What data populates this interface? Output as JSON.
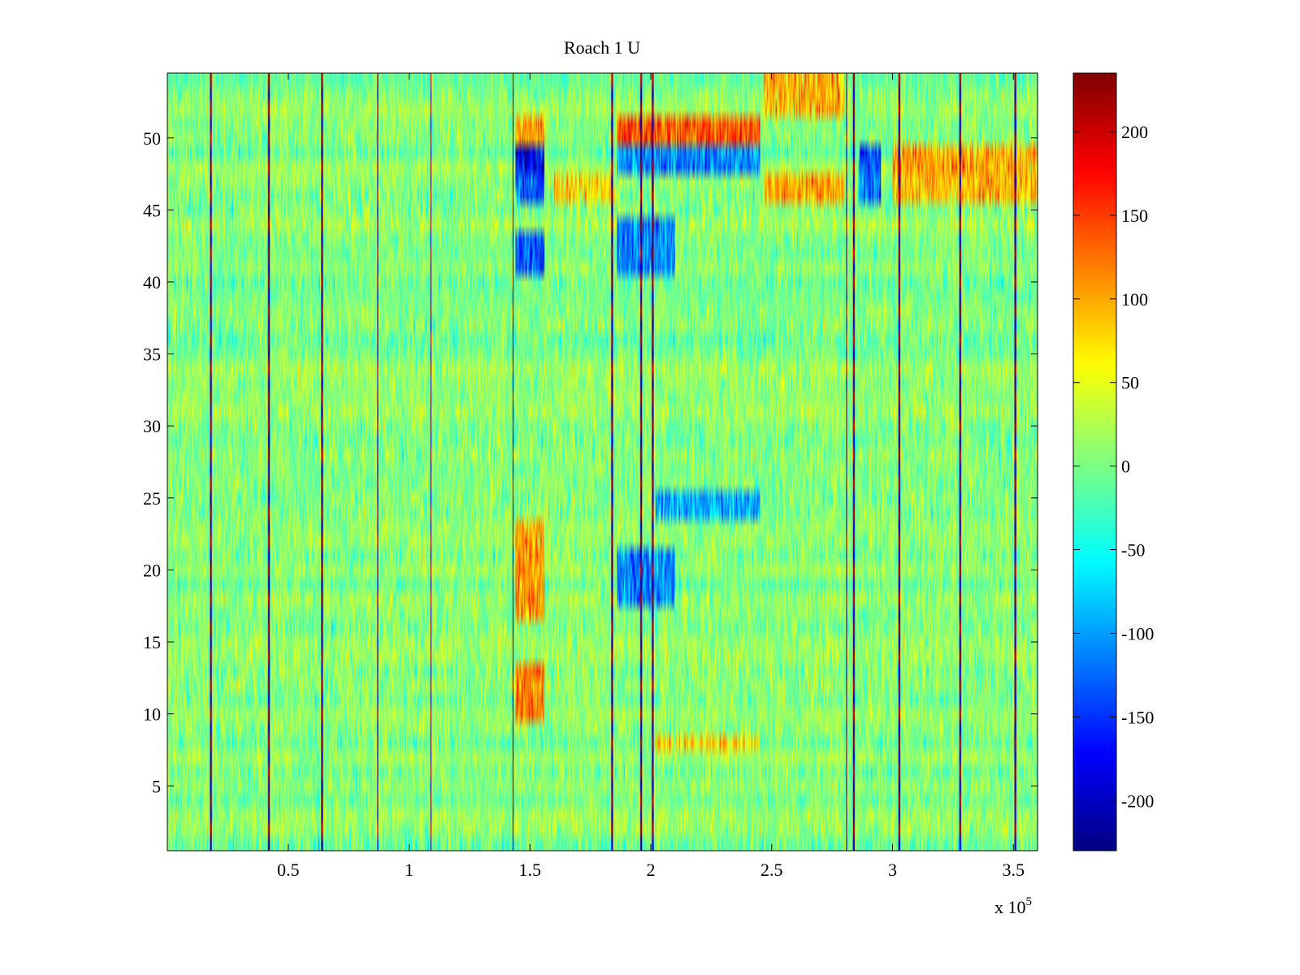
{
  "chart_data": {
    "type": "heatmap",
    "title": "Roach 1 U",
    "x": {
      "range": [
        0,
        3.6
      ],
      "ticks": [
        0.5,
        1,
        1.5,
        2,
        2.5,
        3,
        3.5
      ],
      "tick_labels": [
        "0.5",
        "1",
        "1.5",
        "2",
        "2.5",
        "3",
        "3.5"
      ],
      "multiplier_label": "x 10",
      "multiplier_exponent": "5"
    },
    "y": {
      "range": [
        0.5,
        54.5
      ],
      "ticks": [
        5,
        10,
        15,
        20,
        25,
        30,
        35,
        40,
        45,
        50
      ],
      "tick_labels": [
        "5",
        "10",
        "15",
        "20",
        "25",
        "30",
        "35",
        "40",
        "45",
        "50"
      ],
      "rows": 54
    },
    "colorbar": {
      "range": [
        -230,
        235
      ],
      "ticks": [
        -200,
        -150,
        -100,
        -50,
        0,
        50,
        100,
        150,
        200
      ],
      "tick_labels": [
        "-200",
        "-150",
        "-100",
        "-50",
        "0",
        "50",
        "100",
        "150",
        "200"
      ],
      "colormap": "jet"
    },
    "vertical_stripes_x": [
      0.18,
      0.42,
      0.64,
      0.87,
      1.09,
      1.43,
      1.84,
      1.96,
      2.01,
      2.81,
      2.84,
      3.03,
      3.28,
      3.51
    ],
    "features": [
      {
        "x": [
          1.44,
          1.56
        ],
        "y": [
          48,
          50
        ],
        "value": -180
      },
      {
        "x": [
          1.44,
          1.56
        ],
        "y": [
          50,
          51
        ],
        "value": 110
      },
      {
        "x": [
          1.44,
          1.56
        ],
        "y": [
          45.5,
          47
        ],
        "value": -130
      },
      {
        "x": [
          1.44,
          1.56
        ],
        "y": [
          41,
          43
        ],
        "value": -130
      },
      {
        "x": [
          1.44,
          1.56
        ],
        "y": [
          17,
          23
        ],
        "value": 110
      },
      {
        "x": [
          1.44,
          1.56
        ],
        "y": [
          10,
          13
        ],
        "value": 120
      },
      {
        "x": [
          1.86,
          2.45
        ],
        "y": [
          48,
          49.5
        ],
        "value": -110
      },
      {
        "x": [
          1.86,
          2.45
        ],
        "y": [
          49.5,
          51
        ],
        "value": 140
      },
      {
        "x": [
          1.6,
          1.85
        ],
        "y": [
          45.5,
          47
        ],
        "value": 80
      },
      {
        "x": [
          2.47,
          2.8
        ],
        "y": [
          45.5,
          47
        ],
        "value": 100
      },
      {
        "x": [
          2.47,
          2.8
        ],
        "y": [
          52,
          54
        ],
        "value": 90
      },
      {
        "x": [
          2.86,
          2.95
        ],
        "y": [
          48,
          49.5
        ],
        "value": -130
      },
      {
        "x": [
          2.86,
          2.95
        ],
        "y": [
          45.5,
          47
        ],
        "value": -120
      },
      {
        "x": [
          3.0,
          3.6
        ],
        "y": [
          48,
          49.5
        ],
        "value": 100
      },
      {
        "x": [
          3.0,
          3.6
        ],
        "y": [
          45.5,
          47
        ],
        "value": 90
      },
      {
        "x": [
          1.86,
          2.1
        ],
        "y": [
          41,
          44
        ],
        "value": -110
      },
      {
        "x": [
          2.02,
          2.45
        ],
        "y": [
          24,
          25.5
        ],
        "value": -90
      },
      {
        "x": [
          1.86,
          2.1
        ],
        "y": [
          18,
          21
        ],
        "value": -110
      },
      {
        "x": [
          2.02,
          2.45
        ],
        "y": [
          7.5,
          8.5
        ],
        "value": 80
      }
    ]
  }
}
